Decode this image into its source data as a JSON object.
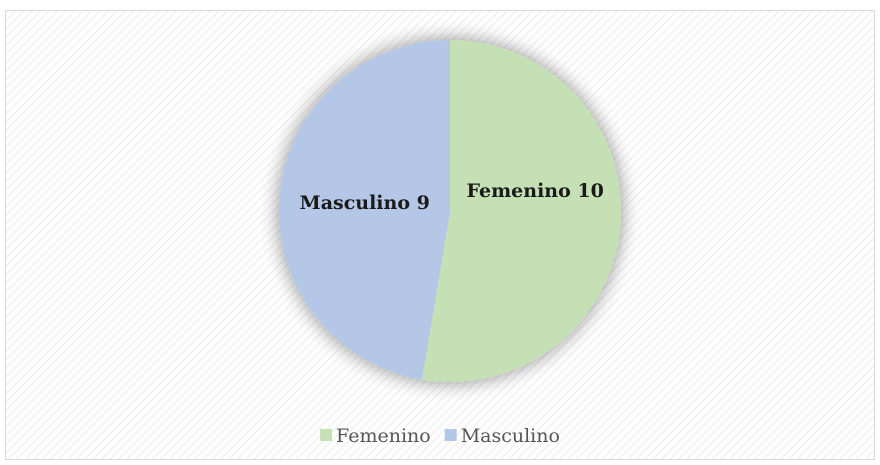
{
  "chart_data": {
    "type": "pie",
    "categories": [
      "Femenino",
      "Masculino"
    ],
    "values": [
      10,
      9
    ],
    "colors": [
      "#c5e0b4",
      "#b4c7e7"
    ],
    "legend": "bottom"
  }
}
